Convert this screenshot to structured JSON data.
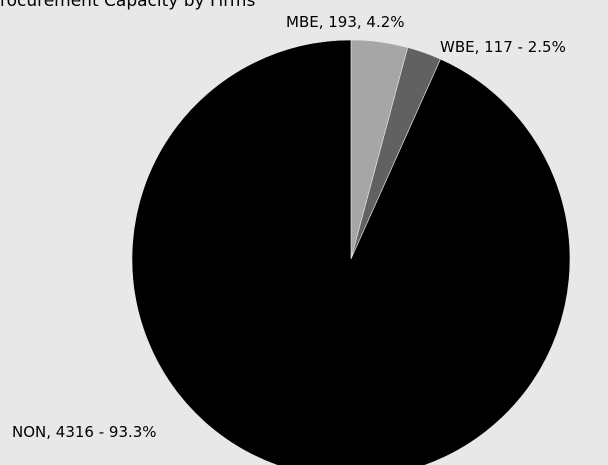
{
  "chart_data": {
    "type": "pie",
    "title": "Procurement Capacity by Firms",
    "slices": [
      {
        "name": "MBE",
        "value": 193,
        "percent": 4.2,
        "label": "MBE, 193, 4.2%",
        "color": "#a6a6a6"
      },
      {
        "name": "WBE",
        "value": 117,
        "percent": 2.5,
        "label": "WBE, 117 - 2.5%",
        "color": "#616161"
      },
      {
        "name": "NON",
        "value": 4316,
        "percent": 93.3,
        "label": "NON, 4316 - 93.3%",
        "color": "#000000"
      }
    ],
    "start_angle": "12 o'clock",
    "direction": "clockwise",
    "legend": "none"
  }
}
